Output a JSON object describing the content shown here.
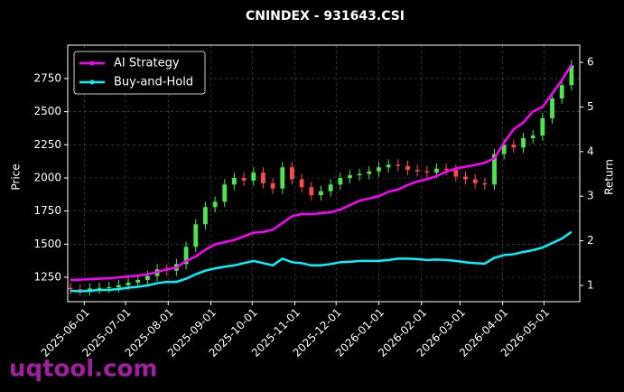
{
  "chart_data": {
    "type": "candlestick",
    "title": "CNINDEX - 931643.CSI",
    "y_label": "Price",
    "y2_label": "Return",
    "watermark": "uqtool.com",
    "up_color": "#4ee64e",
    "down_color": "#ff4a4a",
    "grid": true,
    "legend": "upper left",
    "x": [
      "2025-05-22",
      "2025-05-29",
      "2025-06-05",
      "2025-06-12",
      "2025-06-19",
      "2025-06-26",
      "2025-07-03",
      "2025-07-10",
      "2025-07-17",
      "2025-07-24",
      "2025-07-31",
      "2025-08-07",
      "2025-08-14",
      "2025-08-21",
      "2025-08-28",
      "2025-09-04",
      "2025-09-11",
      "2025-09-18",
      "2025-09-25",
      "2025-10-02",
      "2025-10-09",
      "2025-10-16",
      "2025-10-23",
      "2025-10-30",
      "2025-11-06",
      "2025-11-13",
      "2025-11-20",
      "2025-11-27",
      "2025-12-04",
      "2025-12-11",
      "2025-12-18",
      "2025-12-25",
      "2026-01-01",
      "2026-01-08",
      "2026-01-15",
      "2026-01-22",
      "2026-01-29",
      "2026-02-05",
      "2026-02-12",
      "2026-02-19",
      "2026-02-26",
      "2026-03-05",
      "2026-03-12",
      "2026-03-19",
      "2026-03-26",
      "2026-04-02",
      "2026-04-09",
      "2026-04-16",
      "2026-04-23",
      "2026-04-30",
      "2026-05-07",
      "2026-05-14",
      "2026-05-21"
    ],
    "open": [
      1170,
      1160,
      1150,
      1165,
      1170,
      1175,
      1190,
      1210,
      1230,
      1260,
      1310,
      1300,
      1350,
      1480,
      1650,
      1780,
      1820,
      1950,
      2000,
      1980,
      2040,
      1960,
      1920,
      2080,
      1990,
      1930,
      1870,
      1900,
      1950,
      2000,
      2020,
      2030,
      2050,
      2080,
      2100,
      2090,
      2060,
      2050,
      2040,
      2070,
      2060,
      2010,
      1990,
      1960,
      1950,
      2180,
      2250,
      2230,
      2300,
      2320,
      2450,
      2600,
      2700
    ],
    "high": [
      1210,
      1200,
      1205,
      1210,
      1215,
      1230,
      1250,
      1270,
      1300,
      1350,
      1350,
      1390,
      1520,
      1690,
      1820,
      1860,
      1990,
      2040,
      2040,
      2080,
      2080,
      2000,
      2120,
      2120,
      2030,
      1970,
      1940,
      1990,
      2040,
      2060,
      2070,
      2090,
      2120,
      2140,
      2140,
      2130,
      2100,
      2090,
      2110,
      2110,
      2100,
      2050,
      2030,
      2000,
      2220,
      2290,
      2290,
      2340,
      2360,
      2490,
      2640,
      2740,
      2890
    ],
    "low": [
      1120,
      1110,
      1110,
      1125,
      1130,
      1135,
      1150,
      1170,
      1190,
      1220,
      1260,
      1260,
      1310,
      1440,
      1610,
      1740,
      1780,
      1910,
      1940,
      1940,
      1920,
      1880,
      1880,
      1950,
      1890,
      1830,
      1830,
      1860,
      1910,
      1960,
      1980,
      1990,
      2010,
      2040,
      2050,
      2020,
      2010,
      2000,
      2000,
      2020,
      1970,
      1950,
      1920,
      1910,
      1910,
      2140,
      2190,
      2190,
      2260,
      2280,
      2410,
      2560,
      2660
    ],
    "close": [
      1160,
      1150,
      1165,
      1170,
      1175,
      1190,
      1210,
      1230,
      1260,
      1310,
      1300,
      1350,
      1480,
      1650,
      1780,
      1820,
      1950,
      2000,
      1980,
      2040,
      1960,
      1920,
      2080,
      1990,
      1930,
      1870,
      1900,
      1950,
      2000,
      2020,
      2030,
      2050,
      2080,
      2100,
      2090,
      2060,
      2050,
      2040,
      2070,
      2060,
      2010,
      1990,
      1960,
      1950,
      2180,
      2250,
      2230,
      2300,
      2320,
      2450,
      2600,
      2700,
      2850
    ],
    "series": [
      {
        "name": "AI Strategy",
        "color": "#ff00ff",
        "axis": "y2",
        "values": [
          1.12,
          1.13,
          1.14,
          1.15,
          1.16,
          1.18,
          1.2,
          1.22,
          1.25,
          1.3,
          1.36,
          1.4,
          1.55,
          1.65,
          1.8,
          1.92,
          1.97,
          2.02,
          2.1,
          2.18,
          2.2,
          2.25,
          2.4,
          2.55,
          2.6,
          2.6,
          2.62,
          2.64,
          2.7,
          2.8,
          2.9,
          2.95,
          3.0,
          3.1,
          3.15,
          3.25,
          3.33,
          3.38,
          3.45,
          3.55,
          3.62,
          3.66,
          3.7,
          3.75,
          3.85,
          4.2,
          4.5,
          4.65,
          4.9,
          5.0,
          5.3,
          5.6,
          5.95
        ]
      },
      {
        "name": "Buy-and-Hold",
        "color": "#00f5ff",
        "axis": "y2",
        "values": [
          0.88,
          0.87,
          0.88,
          0.9,
          0.9,
          0.92,
          0.95,
          0.97,
          1.0,
          1.05,
          1.08,
          1.08,
          1.15,
          1.25,
          1.33,
          1.38,
          1.42,
          1.45,
          1.5,
          1.55,
          1.5,
          1.45,
          1.6,
          1.52,
          1.5,
          1.45,
          1.45,
          1.48,
          1.52,
          1.53,
          1.55,
          1.55,
          1.55,
          1.57,
          1.6,
          1.6,
          1.59,
          1.57,
          1.58,
          1.57,
          1.55,
          1.52,
          1.5,
          1.49,
          1.62,
          1.68,
          1.7,
          1.75,
          1.79,
          1.85,
          1.95,
          2.05,
          2.2
        ]
      }
    ],
    "xlim": [
      "2025-05-20",
      "2026-05-27"
    ],
    "xticks": [
      "2025-06-01",
      "2025-07-01",
      "2025-08-01",
      "2025-09-01",
      "2025-10-01",
      "2025-11-01",
      "2025-12-01",
      "2026-01-01",
      "2026-02-01",
      "2026-03-01",
      "2026-04-01",
      "2026-05-01"
    ],
    "ylim": [
      1066,
      3002
    ],
    "yticks": [
      1250,
      1500,
      1750,
      2000,
      2250,
      2500,
      2750
    ],
    "y2lim": [
      0.636,
      6.385
    ],
    "y2ticks": [
      1,
      2,
      3,
      4,
      5,
      6
    ]
  }
}
